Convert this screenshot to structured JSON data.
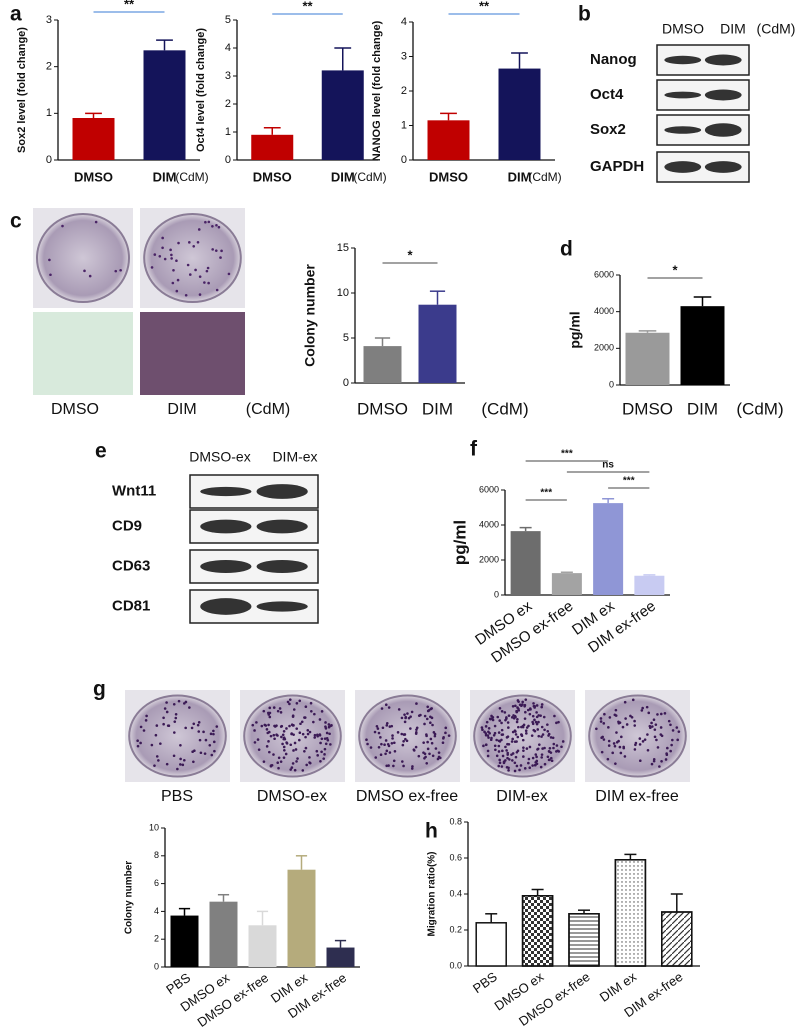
{
  "panel_labels": [
    "a",
    "b",
    "c",
    "d",
    "e",
    "f",
    "g",
    "h"
  ],
  "chart_data": [
    {
      "type": "bar",
      "y_label": "Sox2 level (fold change)",
      "categories": [
        "DMSO",
        "DIM"
      ],
      "x_note": "(CdM)",
      "values": [
        0.9,
        2.35
      ],
      "errors": [
        0.1,
        0.22
      ],
      "colors": [
        "#c00000",
        "#14145a"
      ],
      "ylim": [
        0,
        3
      ],
      "yticks": [
        0,
        1,
        2,
        3
      ],
      "comparisons": [
        {
          "label": "**",
          "groups": [
            "DMSO",
            "DIM"
          ]
        }
      ]
    },
    {
      "type": "bar",
      "y_label": "Oct4 level (fold change)",
      "categories": [
        "DMSO",
        "DIM"
      ],
      "x_note": "(CdM)",
      "values": [
        0.9,
        3.2
      ],
      "errors": [
        0.25,
        0.8
      ],
      "colors": [
        "#c00000",
        "#14145a"
      ],
      "ylim": [
        0,
        5
      ],
      "yticks": [
        0,
        1,
        2,
        3,
        4,
        5
      ],
      "comparisons": [
        {
          "label": "**",
          "groups": [
            "DMSO",
            "DIM"
          ]
        }
      ]
    },
    {
      "type": "bar",
      "y_label": "NANOG level (fold change)",
      "categories": [
        "DMSO",
        "DIM"
      ],
      "x_note": "(CdM)",
      "values": [
        1.15,
        2.65
      ],
      "errors": [
        0.2,
        0.45
      ],
      "colors": [
        "#c00000",
        "#14145a"
      ],
      "ylim": [
        0,
        4
      ],
      "yticks": [
        0,
        1,
        2,
        3,
        4
      ],
      "comparisons": [
        {
          "label": "**",
          "groups": [
            "DMSO",
            "DIM"
          ]
        }
      ]
    },
    {
      "type": "bar",
      "y_label": "Colony number",
      "categories": [
        "DMSO",
        "DIM"
      ],
      "x_note": "(CdM)",
      "values": [
        4.1,
        8.7
      ],
      "errors": [
        0.9,
        1.5
      ],
      "colors": [
        "#7f7f7f",
        "#3b3b8c"
      ],
      "ylim": [
        0,
        15
      ],
      "yticks": [
        0,
        5,
        10,
        15
      ],
      "comparisons": [
        {
          "label": "*",
          "groups": [
            "DMSO",
            "DIM"
          ]
        }
      ]
    },
    {
      "type": "bar",
      "y_label": "pg/ml",
      "categories": [
        "DMSO",
        "DIM"
      ],
      "x_note": "(CdM)",
      "values": [
        2850,
        4300
      ],
      "errors": [
        100,
        500
      ],
      "colors": [
        "#9a9a9a",
        "#000000"
      ],
      "ylim": [
        0,
        6000
      ],
      "yticks": [
        0,
        2000,
        4000,
        6000
      ],
      "comparisons": [
        {
          "label": "*",
          "groups": [
            "DMSO",
            "DIM"
          ]
        }
      ]
    },
    {
      "type": "bar",
      "y_label": "pg/ml",
      "categories": [
        "DMSO ex",
        "DMSO ex-free",
        "DIM ex",
        "DIM ex-free"
      ],
      "values": [
        3650,
        1250,
        5250,
        1100
      ],
      "errors": [
        200,
        50,
        250,
        50
      ],
      "colors": [
        "#6d6d6d",
        "#a3a3a3",
        "#8f96d6",
        "#c8cbf2"
      ],
      "ylim": [
        0,
        6000
      ],
      "yticks": [
        0,
        2000,
        4000,
        6000
      ],
      "comparisons": [
        {
          "label": "***",
          "groups": [
            "DMSO ex",
            "DIM ex"
          ]
        },
        {
          "label": "ns",
          "groups": [
            "DMSO ex-free",
            "DIM ex-free"
          ]
        },
        {
          "label": "***",
          "groups": [
            "DMSO ex",
            "DMSO ex-free"
          ]
        },
        {
          "label": "***",
          "groups": [
            "DIM ex",
            "DIM ex-free"
          ]
        }
      ]
    },
    {
      "type": "bar",
      "y_label": "Colony number",
      "categories": [
        "PBS",
        "DMSO ex",
        "DMSO ex-free",
        "DIM ex",
        "DIM ex-free"
      ],
      "values": [
        3.7,
        4.7,
        3.0,
        7.0,
        1.4
      ],
      "errors": [
        0.5,
        0.5,
        1.0,
        1.0,
        0.5
      ],
      "colors": [
        "#000000",
        "#808080",
        "#d9d9d9",
        "#b5ab7c",
        "#2e2e50"
      ],
      "ylim": [
        0,
        10
      ],
      "yticks": [
        0,
        2,
        4,
        6,
        8,
        10
      ]
    },
    {
      "type": "bar",
      "y_label": "Migration ratio(%)",
      "categories": [
        "PBS",
        "DMSO ex",
        "DMSO ex-free",
        "DIM ex",
        "DIM ex-free"
      ],
      "values": [
        0.24,
        0.39,
        0.29,
        0.59,
        0.3
      ],
      "errors": [
        0.05,
        0.035,
        0.02,
        0.03,
        0.1
      ],
      "colors": [
        "#ffffff",
        "#ffffff",
        "#ffffff",
        "#ffffff",
        "#ffffff"
      ],
      "ylim": [
        0,
        0.8
      ],
      "yticks": [
        {
          "value": 0,
          "label": "0.0"
        },
        0.2,
        0.4,
        0.6,
        0.8
      ]
    }
  ],
  "blot_b": {
    "columns": [
      "DMSO",
      "DIM",
      "(CdM)"
    ],
    "rows": [
      "Nanog",
      "Oct4",
      "Sox2",
      "GAPDH"
    ]
  },
  "colony_images_c": {
    "captions": [
      "DMSO",
      "DIM",
      "(CdM)"
    ]
  },
  "blot_e": {
    "columns": [
      "DMSO-ex",
      "DIM-ex"
    ],
    "rows": [
      "Wnt11",
      "CD9",
      "CD63",
      "CD81"
    ]
  },
  "colony_images_g": {
    "captions": [
      "PBS",
      "DMSO-ex",
      "DMSO ex-free",
      "DIM-ex",
      "DIM ex-free"
    ]
  }
}
